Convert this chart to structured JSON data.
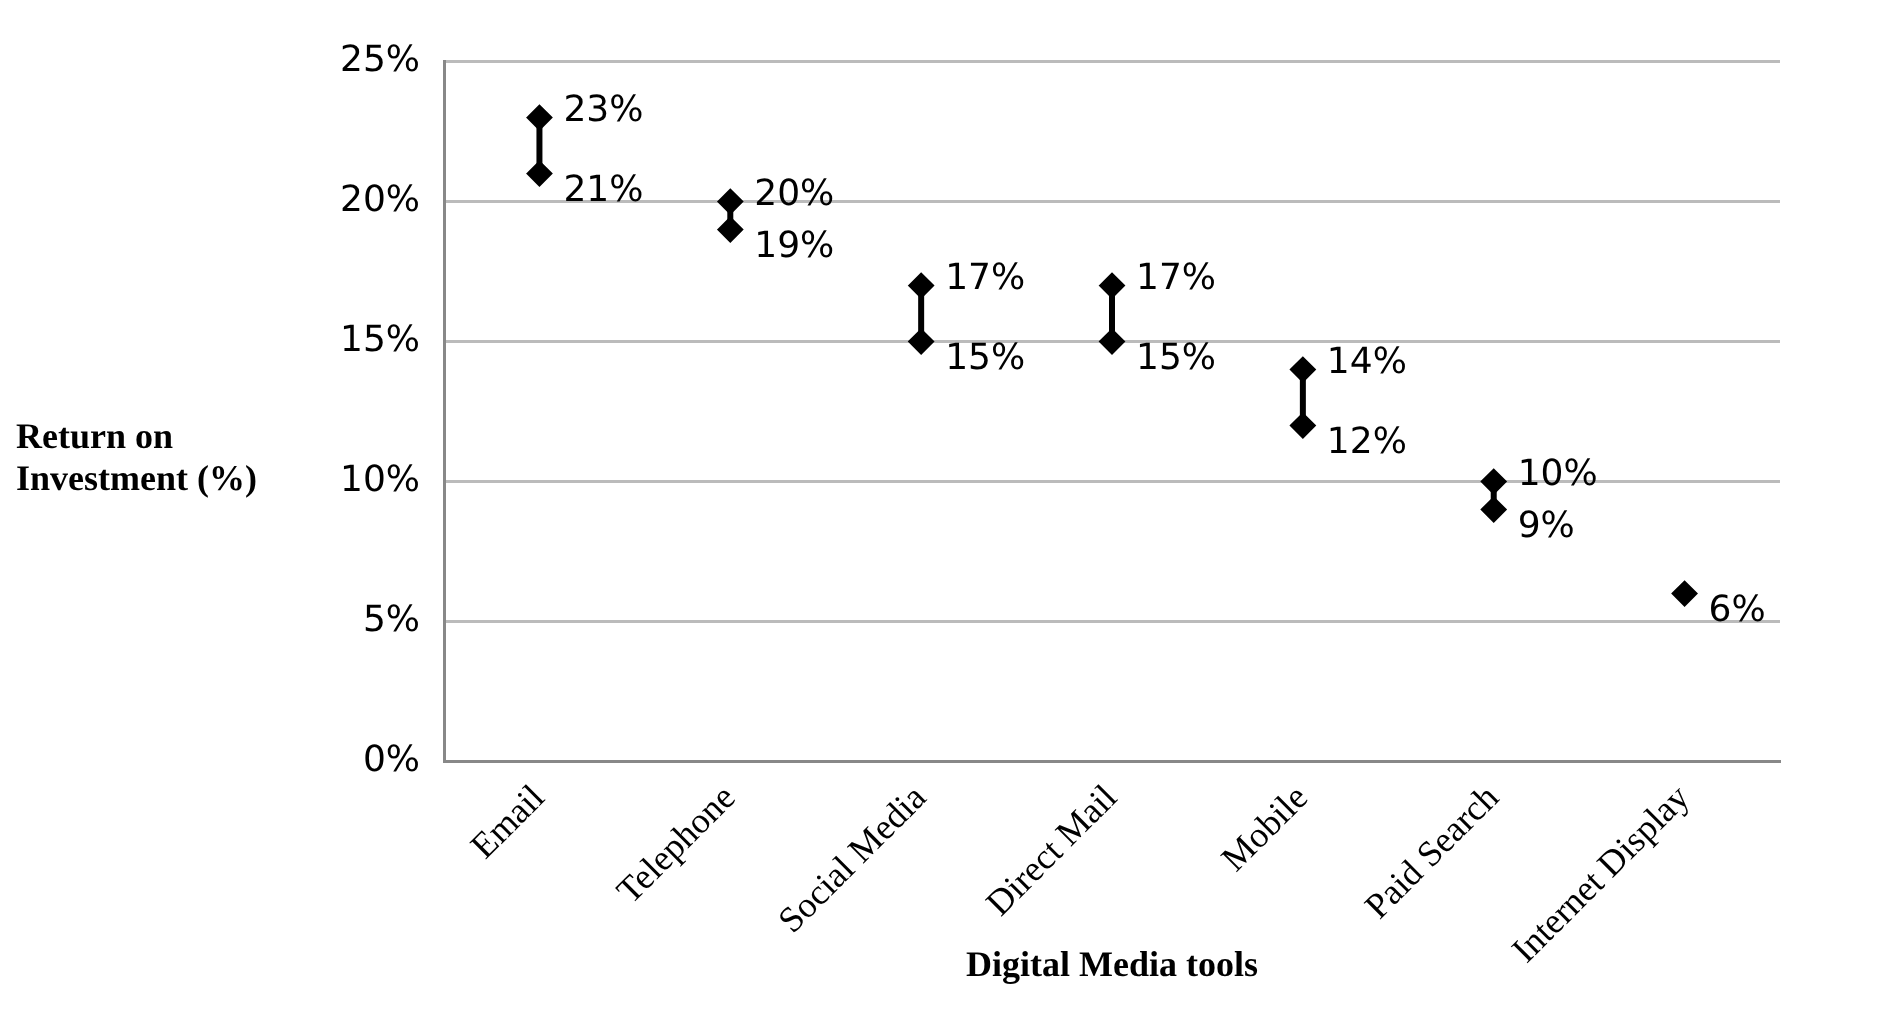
{
  "chart_data": {
    "type": "scatter",
    "xlabel": "Digital Media tools",
    "ylabel": "Return on Investment (%)",
    "categories": [
      "Email",
      "Telephone",
      "Social Media",
      "Direct Mail",
      "Mobile",
      "Paid Search",
      "Internet Display"
    ],
    "series": [
      {
        "color": "#000000",
        "values": [
          23,
          20,
          17,
          17,
          14,
          10,
          null
        ],
        "value_labels": [
          "23%",
          "20%",
          "17%",
          "17%",
          "14%",
          "10%",
          null
        ]
      },
      {
        "color": "#000000",
        "values": [
          21,
          19,
          15,
          15,
          12,
          9,
          6
        ],
        "value_labels": [
          "21%",
          "19%",
          "15%",
          "15%",
          "12%",
          "9%",
          "6%"
        ]
      }
    ],
    "ylim": [
      0,
      25
    ],
    "yticks": [
      {
        "value": 0,
        "label": "0%"
      },
      {
        "value": 5,
        "label": "5%"
      },
      {
        "value": 10,
        "label": "10%"
      },
      {
        "value": 15,
        "label": "15%"
      },
      {
        "value": 20,
        "label": "20%"
      },
      {
        "value": 25,
        "label": "25%"
      }
    ],
    "grid": "y",
    "marker": "diamond",
    "legend": false
  }
}
